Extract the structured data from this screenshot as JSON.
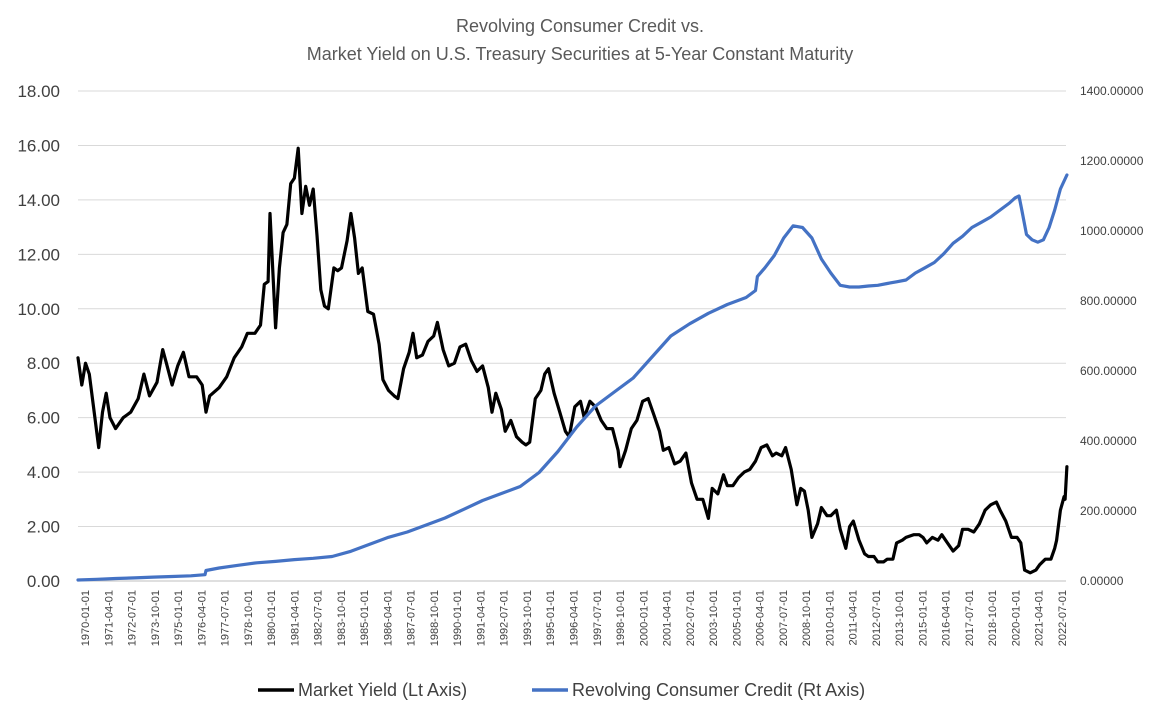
{
  "chart_data": {
    "type": "line",
    "title": "Revolving Consumer Credit  vs.",
    "subtitle": "Market Yield on U.S. Treasury Securities at 5-Year Constant Maturity",
    "y_left": {
      "ylim": [
        0,
        18
      ],
      "ticks": [
        "0.00",
        "2.00",
        "4.00",
        "6.00",
        "8.00",
        "10.00",
        "12.00",
        "14.00",
        "16.00",
        "18.00"
      ]
    },
    "y_right": {
      "ylim": [
        0,
        1400
      ],
      "ticks": [
        "0.00000",
        "200.00000",
        "400.00000",
        "600.00000",
        "800.00000",
        "1000.00000",
        "1200.00000",
        "1400.00000"
      ]
    },
    "x_range": [
      1970.0,
      2022.5
    ],
    "x_tick_labels": [
      "1970-01-01",
      "1971-04-01",
      "1972-07-01",
      "1973-10-01",
      "1975-01-01",
      "1976-04-01",
      "1977-07-01",
      "1978-10-01",
      "1980-01-01",
      "1981-04-01",
      "1982-07-01",
      "1983-10-01",
      "1985-01-01",
      "1986-04-01",
      "1987-07-01",
      "1988-10-01",
      "1990-01-01",
      "1991-04-01",
      "1992-07-01",
      "1993-10-01",
      "1995-01-01",
      "1996-04-01",
      "1997-07-01",
      "1998-10-01",
      "2000-01-01",
      "2001-04-01",
      "2002-07-01",
      "2003-10-01",
      "2005-01-01",
      "2006-04-01",
      "2007-07-01",
      "2008-10-01",
      "2010-01-01",
      "2011-04-01",
      "2012-07-01",
      "2013-10-01",
      "2015-01-01",
      "2016-04-01",
      "2017-07-01",
      "2018-10-01",
      "2020-01-01",
      "2021-04-01",
      "2022-07-01"
    ],
    "series": [
      {
        "name": "Market Yield (Lt Axis)",
        "axis": "left",
        "color": "#000000",
        "points": [
          [
            1970.0,
            8.2
          ],
          [
            1970.2,
            7.2
          ],
          [
            1970.4,
            8.0
          ],
          [
            1970.6,
            7.6
          ],
          [
            1970.9,
            6.0
          ],
          [
            1971.1,
            4.9
          ],
          [
            1971.3,
            6.2
          ],
          [
            1971.5,
            6.9
          ],
          [
            1971.7,
            6.0
          ],
          [
            1972.0,
            5.6
          ],
          [
            1972.4,
            6.0
          ],
          [
            1972.8,
            6.2
          ],
          [
            1973.2,
            6.7
          ],
          [
            1973.5,
            7.6
          ],
          [
            1973.8,
            6.8
          ],
          [
            1974.2,
            7.3
          ],
          [
            1974.5,
            8.5
          ],
          [
            1974.7,
            8.0
          ],
          [
            1975.0,
            7.2
          ],
          [
            1975.3,
            7.9
          ],
          [
            1975.6,
            8.4
          ],
          [
            1975.9,
            7.5
          ],
          [
            1976.3,
            7.5
          ],
          [
            1976.6,
            7.2
          ],
          [
            1976.8,
            6.2
          ],
          [
            1977.0,
            6.8
          ],
          [
            1977.5,
            7.1
          ],
          [
            1977.9,
            7.5
          ],
          [
            1978.3,
            8.2
          ],
          [
            1978.7,
            8.6
          ],
          [
            1979.0,
            9.1
          ],
          [
            1979.4,
            9.1
          ],
          [
            1979.7,
            9.4
          ],
          [
            1979.9,
            10.9
          ],
          [
            1980.1,
            11.0
          ],
          [
            1980.2,
            13.5
          ],
          [
            1980.5,
            9.3
          ],
          [
            1980.7,
            11.5
          ],
          [
            1980.9,
            12.8
          ],
          [
            1981.1,
            13.1
          ],
          [
            1981.3,
            14.6
          ],
          [
            1981.5,
            14.8
          ],
          [
            1981.7,
            15.9
          ],
          [
            1981.9,
            13.5
          ],
          [
            1982.1,
            14.5
          ],
          [
            1982.3,
            13.8
          ],
          [
            1982.5,
            14.4
          ],
          [
            1982.7,
            12.7
          ],
          [
            1982.9,
            10.7
          ],
          [
            1983.1,
            10.1
          ],
          [
            1983.3,
            10.0
          ],
          [
            1983.6,
            11.5
          ],
          [
            1983.8,
            11.4
          ],
          [
            1984.0,
            11.5
          ],
          [
            1984.3,
            12.5
          ],
          [
            1984.5,
            13.5
          ],
          [
            1984.7,
            12.6
          ],
          [
            1984.9,
            11.3
          ],
          [
            1985.1,
            11.5
          ],
          [
            1985.4,
            9.9
          ],
          [
            1985.7,
            9.8
          ],
          [
            1986.0,
            8.7
          ],
          [
            1986.2,
            7.4
          ],
          [
            1986.5,
            7.0
          ],
          [
            1986.8,
            6.8
          ],
          [
            1987.0,
            6.7
          ],
          [
            1987.3,
            7.8
          ],
          [
            1987.6,
            8.4
          ],
          [
            1987.8,
            9.1
          ],
          [
            1988.0,
            8.2
          ],
          [
            1988.3,
            8.3
          ],
          [
            1988.6,
            8.8
          ],
          [
            1988.9,
            9.0
          ],
          [
            1989.1,
            9.5
          ],
          [
            1989.4,
            8.5
          ],
          [
            1989.7,
            7.9
          ],
          [
            1990.0,
            8.0
          ],
          [
            1990.3,
            8.6
          ],
          [
            1990.6,
            8.7
          ],
          [
            1990.9,
            8.1
          ],
          [
            1991.2,
            7.7
          ],
          [
            1991.5,
            7.9
          ],
          [
            1991.8,
            7.1
          ],
          [
            1992.0,
            6.2
          ],
          [
            1992.2,
            6.9
          ],
          [
            1992.5,
            6.3
          ],
          [
            1992.7,
            5.5
          ],
          [
            1993.0,
            5.9
          ],
          [
            1993.3,
            5.3
          ],
          [
            1993.6,
            5.1
          ],
          [
            1993.8,
            5.0
          ],
          [
            1994.0,
            5.1
          ],
          [
            1994.3,
            6.7
          ],
          [
            1994.6,
            7.0
          ],
          [
            1994.8,
            7.6
          ],
          [
            1995.0,
            7.8
          ],
          [
            1995.3,
            6.9
          ],
          [
            1995.6,
            6.2
          ],
          [
            1995.9,
            5.5
          ],
          [
            1996.1,
            5.3
          ],
          [
            1996.4,
            6.4
          ],
          [
            1996.7,
            6.6
          ],
          [
            1996.9,
            6.0
          ],
          [
            1997.2,
            6.6
          ],
          [
            1997.5,
            6.4
          ],
          [
            1997.8,
            5.9
          ],
          [
            1998.1,
            5.6
          ],
          [
            1998.4,
            5.6
          ],
          [
            1998.7,
            4.8
          ],
          [
            1998.8,
            4.2
          ],
          [
            1999.1,
            4.8
          ],
          [
            1999.4,
            5.6
          ],
          [
            1999.7,
            5.9
          ],
          [
            2000.0,
            6.6
          ],
          [
            2000.3,
            6.7
          ],
          [
            2000.6,
            6.1
          ],
          [
            2000.9,
            5.5
          ],
          [
            2001.1,
            4.8
          ],
          [
            2001.4,
            4.9
          ],
          [
            2001.7,
            4.3
          ],
          [
            2002.0,
            4.4
          ],
          [
            2002.3,
            4.7
          ],
          [
            2002.6,
            3.6
          ],
          [
            2002.9,
            3.0
          ],
          [
            2003.2,
            3.0
          ],
          [
            2003.5,
            2.3
          ],
          [
            2003.7,
            3.4
          ],
          [
            2004.0,
            3.2
          ],
          [
            2004.3,
            3.9
          ],
          [
            2004.5,
            3.5
          ],
          [
            2004.8,
            3.5
          ],
          [
            2005.1,
            3.8
          ],
          [
            2005.4,
            4.0
          ],
          [
            2005.7,
            4.1
          ],
          [
            2006.0,
            4.4
          ],
          [
            2006.3,
            4.9
          ],
          [
            2006.6,
            5.0
          ],
          [
            2006.9,
            4.6
          ],
          [
            2007.1,
            4.7
          ],
          [
            2007.4,
            4.6
          ],
          [
            2007.6,
            4.9
          ],
          [
            2007.9,
            4.1
          ],
          [
            2008.2,
            2.8
          ],
          [
            2008.4,
            3.4
          ],
          [
            2008.6,
            3.3
          ],
          [
            2008.8,
            2.6
          ],
          [
            2009.0,
            1.6
          ],
          [
            2009.3,
            2.1
          ],
          [
            2009.5,
            2.7
          ],
          [
            2009.8,
            2.4
          ],
          [
            2010.0,
            2.4
          ],
          [
            2010.3,
            2.6
          ],
          [
            2010.5,
            1.9
          ],
          [
            2010.8,
            1.2
          ],
          [
            2011.0,
            2.0
          ],
          [
            2011.2,
            2.2
          ],
          [
            2011.5,
            1.5
          ],
          [
            2011.8,
            1.0
          ],
          [
            2012.0,
            0.9
          ],
          [
            2012.3,
            0.9
          ],
          [
            2012.5,
            0.7
          ],
          [
            2012.8,
            0.7
          ],
          [
            2013.0,
            0.8
          ],
          [
            2013.3,
            0.8
          ],
          [
            2013.5,
            1.4
          ],
          [
            2013.8,
            1.5
          ],
          [
            2014.0,
            1.6
          ],
          [
            2014.4,
            1.7
          ],
          [
            2014.7,
            1.7
          ],
          [
            2014.9,
            1.6
          ],
          [
            2015.1,
            1.4
          ],
          [
            2015.4,
            1.6
          ],
          [
            2015.7,
            1.5
          ],
          [
            2015.9,
            1.7
          ],
          [
            2016.2,
            1.4
          ],
          [
            2016.5,
            1.1
          ],
          [
            2016.8,
            1.3
          ],
          [
            2017.0,
            1.9
          ],
          [
            2017.3,
            1.9
          ],
          [
            2017.6,
            1.8
          ],
          [
            2017.9,
            2.1
          ],
          [
            2018.2,
            2.6
          ],
          [
            2018.5,
            2.8
          ],
          [
            2018.8,
            2.9
          ],
          [
            2019.0,
            2.6
          ],
          [
            2019.3,
            2.2
          ],
          [
            2019.6,
            1.6
          ],
          [
            2019.9,
            1.6
          ],
          [
            2020.1,
            1.4
          ],
          [
            2020.3,
            0.4
          ],
          [
            2020.6,
            0.3
          ],
          [
            2020.9,
            0.4
          ],
          [
            2021.1,
            0.6
          ],
          [
            2021.4,
            0.8
          ],
          [
            2021.7,
            0.8
          ],
          [
            2021.9,
            1.2
          ],
          [
            2022.0,
            1.5
          ],
          [
            2022.2,
            2.6
          ],
          [
            2022.4,
            3.1
          ],
          [
            2022.45,
            3.0
          ],
          [
            2022.55,
            4.2
          ]
        ]
      },
      {
        "name": "Revolving Consumer Credit (Rt Axis)",
        "axis": "right",
        "color": "#4472c4",
        "points": [
          [
            1970.0,
            3
          ],
          [
            1971.0,
            5
          ],
          [
            1972.0,
            7
          ],
          [
            1973.0,
            9
          ],
          [
            1974.0,
            11
          ],
          [
            1975.0,
            13
          ],
          [
            1976.0,
            15
          ],
          [
            1976.75,
            18
          ],
          [
            1976.8,
            30
          ],
          [
            1977.5,
            37
          ],
          [
            1978.5,
            45
          ],
          [
            1979.5,
            52
          ],
          [
            1980.5,
            56
          ],
          [
            1981.5,
            61
          ],
          [
            1982.5,
            65
          ],
          [
            1983.5,
            70
          ],
          [
            1984.5,
            85
          ],
          [
            1985.5,
            105
          ],
          [
            1986.5,
            125
          ],
          [
            1987.5,
            140
          ],
          [
            1988.5,
            160
          ],
          [
            1989.5,
            180
          ],
          [
            1990.5,
            205
          ],
          [
            1991.5,
            230
          ],
          [
            1992.5,
            250
          ],
          [
            1993.5,
            270
          ],
          [
            1994.5,
            310
          ],
          [
            1995.5,
            370
          ],
          [
            1996.5,
            440
          ],
          [
            1997.5,
            500
          ],
          [
            1998.5,
            540
          ],
          [
            1999.5,
            580
          ],
          [
            2000.5,
            640
          ],
          [
            2001.5,
            700
          ],
          [
            2002.5,
            735
          ],
          [
            2003.5,
            765
          ],
          [
            2004.5,
            790
          ],
          [
            2005.5,
            810
          ],
          [
            2006.0,
            830
          ],
          [
            2006.1,
            870
          ],
          [
            2006.5,
            895
          ],
          [
            2007.0,
            930
          ],
          [
            2007.5,
            980
          ],
          [
            2008.0,
            1015
          ],
          [
            2008.5,
            1010
          ],
          [
            2009.0,
            980
          ],
          [
            2009.5,
            920
          ],
          [
            2010.0,
            880
          ],
          [
            2010.5,
            845
          ],
          [
            2011.0,
            840
          ],
          [
            2011.5,
            840
          ],
          [
            2012.0,
            843
          ],
          [
            2012.5,
            845
          ],
          [
            2013.0,
            850
          ],
          [
            2013.5,
            855
          ],
          [
            2014.0,
            860
          ],
          [
            2014.5,
            880
          ],
          [
            2015.0,
            895
          ],
          [
            2015.5,
            910
          ],
          [
            2016.0,
            935
          ],
          [
            2016.5,
            965
          ],
          [
            2017.0,
            985
          ],
          [
            2017.5,
            1010
          ],
          [
            2018.0,
            1025
          ],
          [
            2018.5,
            1040
          ],
          [
            2019.0,
            1060
          ],
          [
            2019.5,
            1080
          ],
          [
            2019.8,
            1095
          ],
          [
            2020.0,
            1100
          ],
          [
            2020.15,
            1060
          ],
          [
            2020.4,
            990
          ],
          [
            2020.7,
            975
          ],
          [
            2021.0,
            968
          ],
          [
            2021.3,
            975
          ],
          [
            2021.6,
            1010
          ],
          [
            2021.9,
            1060
          ],
          [
            2022.2,
            1120
          ],
          [
            2022.55,
            1160
          ]
        ]
      }
    ],
    "legend": {
      "position": "bottom",
      "items": [
        "Market Yield (Lt Axis)",
        "Revolving Consumer Credit (Rt Axis)"
      ]
    },
    "grid": true
  }
}
